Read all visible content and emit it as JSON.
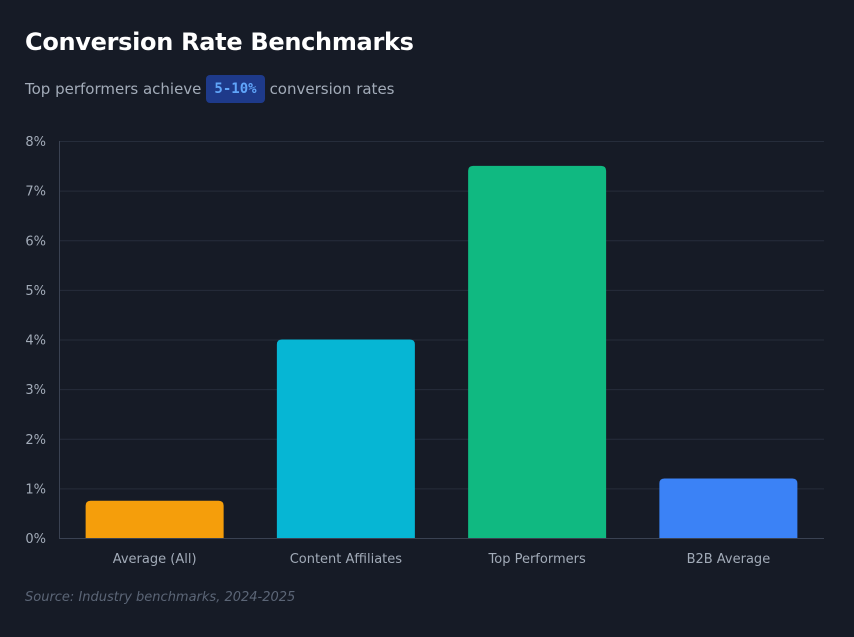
{
  "header": {
    "title": "Conversion Rate Benchmarks",
    "subtitle_prefix": "Top performers achieve",
    "subtitle_highlight": "5-10%",
    "subtitle_suffix": "conversion rates"
  },
  "footer": {
    "source": "Source: Industry benchmarks, 2024-2025"
  },
  "colors": {
    "background": "#161b26",
    "grid": "#262d3b",
    "axis": "#3a4252",
    "tick_text": "#a2abb8",
    "highlight_bg": "#1e3a8a",
    "highlight_text": "#60a5fa"
  },
  "chart_data": {
    "type": "bar",
    "title": "Conversion Rate Benchmarks",
    "xlabel": "",
    "ylabel": "",
    "categories": [
      "Average (All)",
      "Content Affiliates",
      "Top Performers",
      "B2B Average"
    ],
    "values": [
      0.75,
      4.0,
      7.5,
      1.2
    ],
    "bar_colors": [
      "#f59e0b",
      "#06b6d4",
      "#10b981",
      "#3b82f6"
    ],
    "ylim": [
      0,
      8
    ],
    "yticks": [
      0,
      1,
      2,
      3,
      4,
      5,
      6,
      7,
      8
    ],
    "ytick_labels": [
      "0%",
      "1%",
      "2%",
      "3%",
      "4%",
      "5%",
      "6%",
      "7%",
      "8%"
    ],
    "grid": true,
    "legend": "none"
  }
}
